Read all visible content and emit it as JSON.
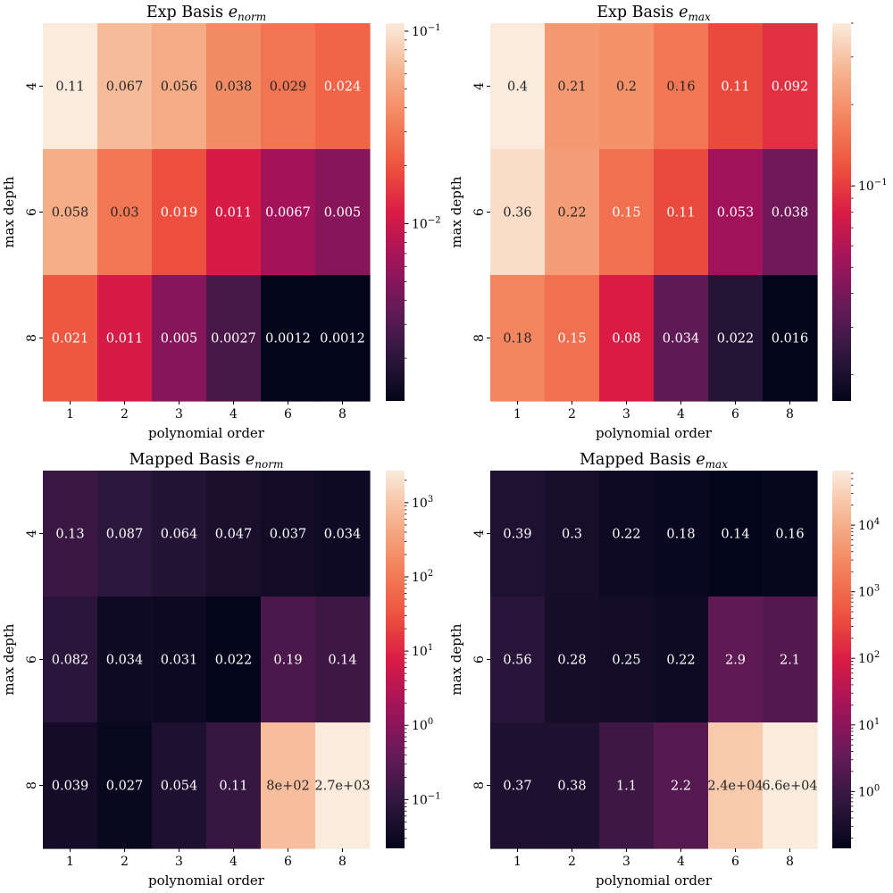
{
  "chart_data": [
    {
      "type": "heatmap",
      "title": "Exp Basis",
      "title_sub": "norm",
      "xlabel": "polynomial order",
      "ylabel": "max depth",
      "x_categories": [
        "1",
        "2",
        "3",
        "4",
        "6",
        "8"
      ],
      "y_categories": [
        "4",
        "6",
        "8"
      ],
      "values": [
        [
          0.11,
          0.067,
          0.056,
          0.038,
          0.029,
          0.024
        ],
        [
          0.058,
          0.03,
          0.019,
          0.011,
          0.0067,
          0.005
        ],
        [
          0.021,
          0.011,
          0.005,
          0.0027,
          0.0012,
          0.0012
        ]
      ],
      "cell_labels": [
        [
          "0.11",
          "0.067",
          "0.056",
          "0.038",
          "0.029",
          "0.024"
        ],
        [
          "0.058",
          "0.03",
          "0.019",
          "0.011",
          "0.0067",
          "0.005"
        ],
        [
          "0.021",
          "0.011",
          "0.005",
          "0.0027",
          "0.0012",
          "0.0012"
        ]
      ],
      "color_scale": "log",
      "vmin": 0.0012,
      "vmax": 0.11,
      "colorbar_ticks": [
        {
          "value": 0.01,
          "base": "10",
          "exp": "−2"
        },
        {
          "value": 0.1,
          "base": "10",
          "exp": "−1"
        }
      ],
      "colormap": "rocket"
    },
    {
      "type": "heatmap",
      "title": "Exp Basis",
      "title_sub": "max",
      "xlabel": "polynomial order",
      "ylabel": "max depth",
      "x_categories": [
        "1",
        "2",
        "3",
        "4",
        "6",
        "8"
      ],
      "y_categories": [
        "4",
        "6",
        "8"
      ],
      "values": [
        [
          0.4,
          0.21,
          0.2,
          0.16,
          0.11,
          0.092
        ],
        [
          0.36,
          0.22,
          0.15,
          0.11,
          0.053,
          0.038
        ],
        [
          0.18,
          0.15,
          0.08,
          0.034,
          0.022,
          0.016
        ]
      ],
      "cell_labels": [
        [
          "0.4",
          "0.21",
          "0.2",
          "0.16",
          "0.11",
          "0.092"
        ],
        [
          "0.36",
          "0.22",
          "0.15",
          "0.11",
          "0.053",
          "0.038"
        ],
        [
          "0.18",
          "0.15",
          "0.08",
          "0.034",
          "0.022",
          "0.016"
        ]
      ],
      "color_scale": "log",
      "vmin": 0.016,
      "vmax": 0.4,
      "colorbar_ticks": [
        {
          "value": 0.1,
          "base": "10",
          "exp": "−1"
        }
      ],
      "colormap": "rocket"
    },
    {
      "type": "heatmap",
      "title": "Mapped Basis",
      "title_sub": "norm",
      "xlabel": "polynomial order",
      "ylabel": "max depth",
      "x_categories": [
        "1",
        "2",
        "3",
        "4",
        "6",
        "8"
      ],
      "y_categories": [
        "4",
        "6",
        "8"
      ],
      "values": [
        [
          0.13,
          0.087,
          0.064,
          0.047,
          0.037,
          0.034
        ],
        [
          0.082,
          0.034,
          0.031,
          0.022,
          0.19,
          0.14
        ],
        [
          0.039,
          0.027,
          0.054,
          0.11,
          800,
          2700
        ]
      ],
      "cell_labels": [
        [
          "0.13",
          "0.087",
          "0.064",
          "0.047",
          "0.037",
          "0.034"
        ],
        [
          "0.082",
          "0.034",
          "0.031",
          "0.022",
          "0.19",
          "0.14"
        ],
        [
          "0.039",
          "0.027",
          "0.054",
          "0.11",
          "8e+02",
          "2.7e+03"
        ]
      ],
      "color_scale": "log",
      "vmin": 0.022,
      "vmax": 2700,
      "colorbar_ticks": [
        {
          "value": 0.1,
          "base": "10",
          "exp": "−1"
        },
        {
          "value": 1,
          "base": "10",
          "exp": "0"
        },
        {
          "value": 10,
          "base": "10",
          "exp": "1"
        },
        {
          "value": 100,
          "base": "10",
          "exp": "2"
        },
        {
          "value": 1000,
          "base": "10",
          "exp": "3"
        }
      ],
      "colormap": "rocket"
    },
    {
      "type": "heatmap",
      "title": "Mapped Basis",
      "title_sub": "max",
      "xlabel": "polynomial order",
      "ylabel": "max depth",
      "x_categories": [
        "1",
        "2",
        "3",
        "4",
        "6",
        "8"
      ],
      "y_categories": [
        "4",
        "6",
        "8"
      ],
      "values": [
        [
          0.39,
          0.3,
          0.22,
          0.18,
          0.14,
          0.16
        ],
        [
          0.56,
          0.28,
          0.25,
          0.22,
          2.9,
          2.1
        ],
        [
          0.37,
          0.38,
          1.1,
          2.2,
          24000,
          66000
        ]
      ],
      "cell_labels": [
        [
          "0.39",
          "0.3",
          "0.22",
          "0.18",
          "0.14",
          "0.16"
        ],
        [
          "0.56",
          "0.28",
          "0.25",
          "0.22",
          "2.9",
          "2.1"
        ],
        [
          "0.37",
          "0.38",
          "1.1",
          "2.2",
          "2.4e+04",
          "6.6e+04"
        ]
      ],
      "color_scale": "log",
      "vmin": 0.14,
      "vmax": 66000,
      "colorbar_ticks": [
        {
          "value": 1,
          "base": "10",
          "exp": "0"
        },
        {
          "value": 10,
          "base": "10",
          "exp": "1"
        },
        {
          "value": 100,
          "base": "10",
          "exp": "2"
        },
        {
          "value": 1000,
          "base": "10",
          "exp": "3"
        },
        {
          "value": 10000,
          "base": "10",
          "exp": "4"
        }
      ],
      "colormap": "rocket"
    }
  ]
}
